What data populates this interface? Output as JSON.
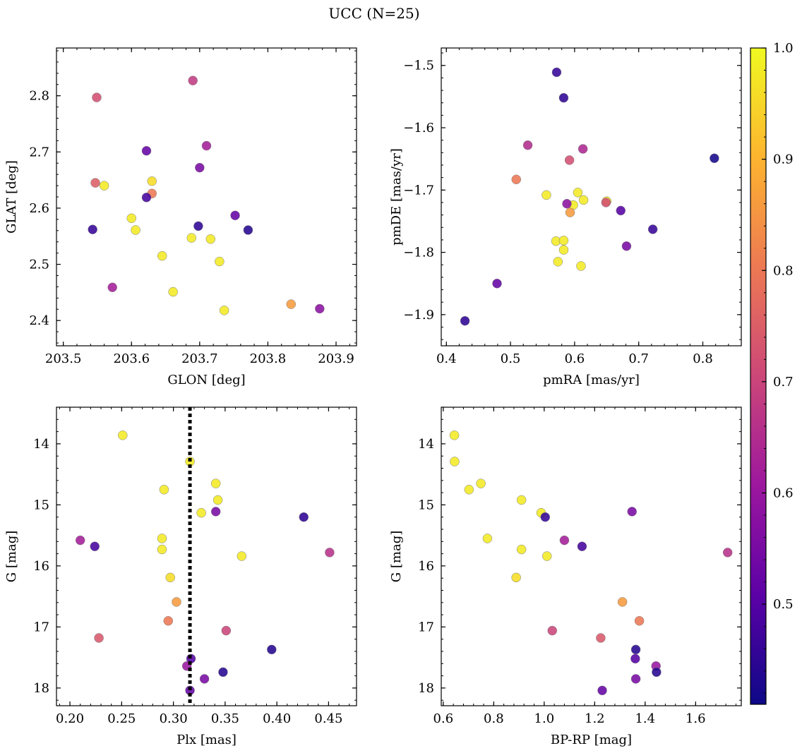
{
  "figure": {
    "title": "UCC (N=25)"
  },
  "colorbar": {
    "vmin": 0.41,
    "vmax": 1.0,
    "ticks": [
      0.5,
      0.6,
      0.7,
      0.8,
      0.9,
      1.0
    ],
    "tick_labels": [
      "0.5",
      "0.6",
      "0.7",
      "0.8",
      "0.9",
      "1.0"
    ],
    "colormap": "plasma",
    "colormap_stops": [
      "#0d0887",
      "#5c01a6",
      "#9c179e",
      "#cc4778",
      "#ed7953",
      "#fdb42f",
      "#f0f921"
    ]
  },
  "chart_data": [
    {
      "type": "scatter",
      "title": "",
      "xlabel": "GLON [deg]",
      "ylabel": "GLAT [deg]",
      "xlim": [
        203.49,
        203.93
      ],
      "ylim": [
        2.355,
        2.885
      ],
      "y_inverted": false,
      "xticks": [
        203.5,
        203.6,
        203.7,
        203.8,
        203.9
      ],
      "xtick_labels": [
        "203.5",
        "203.6",
        "203.7",
        "203.8",
        "203.9"
      ],
      "yticks": [
        2.4,
        2.5,
        2.6,
        2.7,
        2.8
      ],
      "ytick_labels": [
        "2.4",
        "2.5",
        "2.6",
        "2.7",
        "2.8"
      ],
      "x": [
        203.549,
        203.69,
        203.622,
        203.71,
        203.7,
        203.547,
        203.56,
        203.63,
        203.63,
        203.622,
        203.6,
        203.698,
        203.543,
        203.752,
        203.771,
        203.606,
        203.688,
        203.716,
        203.645,
        203.729,
        203.572,
        203.661,
        203.736,
        203.834,
        203.876
      ],
      "y": [
        2.797,
        2.827,
        2.702,
        2.711,
        2.672,
        2.645,
        2.64,
        2.648,
        2.626,
        2.619,
        2.582,
        2.568,
        2.562,
        2.587,
        2.561,
        2.561,
        2.547,
        2.545,
        2.515,
        2.505,
        2.459,
        2.451,
        2.418,
        2.429,
        2.421
      ],
      "color": [
        0.72,
        0.68,
        0.52,
        0.62,
        0.55,
        0.75,
        0.98,
        0.96,
        0.8,
        0.48,
        0.98,
        0.45,
        0.46,
        0.52,
        0.44,
        0.98,
        0.98,
        0.98,
        0.98,
        0.98,
        0.62,
        0.98,
        0.98,
        0.86,
        0.58
      ]
    },
    {
      "type": "scatter",
      "title": "",
      "xlabel": "pmRA [mas/yr]",
      "ylabel": "pmDE [mas/yr]",
      "xlim": [
        0.392,
        0.86
      ],
      "ylim": [
        -1.95,
        -1.472
      ],
      "y_inverted": false,
      "xticks": [
        0.4,
        0.5,
        0.6,
        0.7,
        0.8
      ],
      "xtick_labels": [
        "0.4",
        "0.5",
        "0.6",
        "0.7",
        "0.8"
      ],
      "yticks": [
        -1.9,
        -1.8,
        -1.7,
        -1.6,
        -1.5
      ],
      "ytick_labels": [
        "−1.9",
        "−1.8",
        "−1.7",
        "−1.6",
        "−1.5"
      ],
      "x": [
        0.572,
        0.583,
        0.527,
        0.613,
        0.592,
        0.818,
        0.509,
        0.556,
        0.605,
        0.65,
        0.598,
        0.614,
        0.588,
        0.593,
        0.649,
        0.672,
        0.722,
        0.583,
        0.571,
        0.583,
        0.574,
        0.61,
        0.681,
        0.479,
        0.429
      ],
      "y": [
        -1.511,
        -1.552,
        -1.628,
        -1.634,
        -1.652,
        -1.649,
        -1.683,
        -1.708,
        -1.704,
        -1.718,
        -1.724,
        -1.716,
        -1.722,
        -1.736,
        -1.72,
        -1.733,
        -1.763,
        -1.796,
        -1.782,
        -1.781,
        -1.815,
        -1.822,
        -1.79,
        -1.85,
        -1.91
      ],
      "color": [
        0.46,
        0.45,
        0.65,
        0.64,
        0.72,
        0.42,
        0.8,
        0.98,
        0.98,
        0.97,
        0.98,
        0.98,
        0.58,
        0.86,
        0.72,
        0.5,
        0.46,
        0.98,
        0.98,
        0.98,
        0.98,
        0.98,
        0.55,
        0.52,
        0.45
      ]
    },
    {
      "type": "scatter",
      "title": "",
      "xlabel": "Plx [mas]",
      "ylabel": "G [mag]",
      "xlim": [
        0.187,
        0.477
      ],
      "ylim": [
        18.29,
        13.4
      ],
      "y_inverted": true,
      "xticks": [
        0.2,
        0.25,
        0.3,
        0.35,
        0.4,
        0.45
      ],
      "xtick_labels": [
        "0.20",
        "0.25",
        "0.30",
        "0.35",
        "0.40",
        "0.45"
      ],
      "yticks": [
        14,
        15,
        16,
        17,
        18
      ],
      "ytick_labels": [
        "14",
        "15",
        "16",
        "17",
        "18"
      ],
      "vline": {
        "x": 0.316,
        "style": "dotted"
      },
      "x": [
        0.251,
        0.316,
        0.291,
        0.341,
        0.343,
        0.327,
        0.341,
        0.426,
        0.289,
        0.21,
        0.224,
        0.289,
        0.451,
        0.366,
        0.297,
        0.303,
        0.295,
        0.228,
        0.351,
        0.395,
        0.317,
        0.313,
        0.33,
        0.348,
        0.316
      ],
      "y": [
        13.86,
        14.29,
        14.75,
        14.65,
        14.92,
        15.13,
        15.11,
        15.2,
        15.55,
        15.58,
        15.68,
        15.73,
        15.78,
        15.84,
        16.19,
        16.59,
        16.9,
        17.18,
        17.06,
        17.37,
        17.52,
        17.64,
        17.85,
        17.74,
        18.04
      ],
      "color": [
        0.98,
        0.98,
        0.98,
        0.98,
        0.98,
        0.98,
        0.55,
        0.45,
        0.98,
        0.62,
        0.48,
        0.98,
        0.66,
        0.98,
        0.96,
        0.86,
        0.8,
        0.74,
        0.7,
        0.44,
        0.5,
        0.6,
        0.55,
        0.44,
        0.52
      ]
    },
    {
      "type": "scatter",
      "title": "",
      "xlabel": "BP-RP [mag]",
      "ylabel": "G [mag]",
      "xlim": [
        0.592,
        1.781
      ],
      "ylim": [
        18.29,
        13.4
      ],
      "y_inverted": true,
      "xticks": [
        0.6,
        0.8,
        1.0,
        1.2,
        1.4,
        1.6
      ],
      "xtick_labels": [
        "0.6",
        "0.8",
        "1.0",
        "1.2",
        "1.4",
        "1.6"
      ],
      "yticks": [
        14,
        15,
        16,
        17,
        18
      ],
      "ytick_labels": [
        "14",
        "15",
        "16",
        "17",
        "18"
      ],
      "x": [
        0.644,
        0.645,
        0.702,
        0.749,
        0.91,
        0.988,
        1.004,
        1.348,
        0.775,
        1.08,
        1.15,
        0.91,
        1.727,
        1.011,
        0.889,
        1.31,
        1.377,
        1.224,
        1.032,
        1.363,
        1.361,
        1.443,
        1.363,
        1.445,
        1.23
      ],
      "y": [
        13.86,
        14.29,
        14.75,
        14.65,
        14.92,
        15.13,
        15.2,
        15.11,
        15.55,
        15.58,
        15.68,
        15.73,
        15.78,
        15.84,
        16.19,
        16.59,
        16.9,
        17.18,
        17.06,
        17.37,
        17.52,
        17.64,
        17.85,
        17.74,
        18.04
      ],
      "color": [
        0.98,
        0.98,
        0.98,
        0.98,
        0.98,
        0.98,
        0.46,
        0.55,
        0.98,
        0.62,
        0.48,
        0.98,
        0.66,
        0.98,
        0.96,
        0.86,
        0.8,
        0.74,
        0.7,
        0.44,
        0.5,
        0.6,
        0.55,
        0.44,
        0.52
      ]
    }
  ]
}
